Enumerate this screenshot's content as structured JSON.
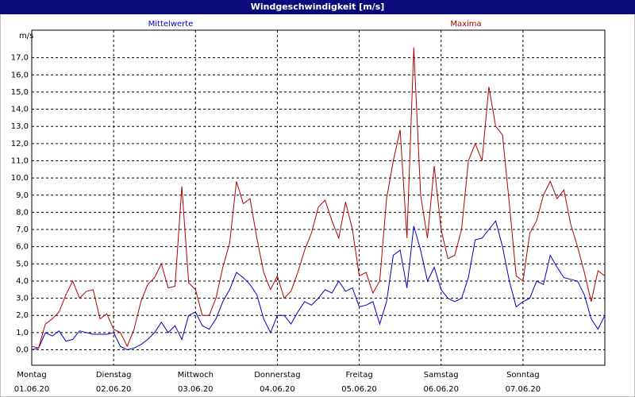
{
  "chart_data": {
    "type": "line",
    "title": "Windgeschwindigkeit [m/s]",
    "y_label": "m/s",
    "x": [
      0,
      2,
      4,
      6,
      8,
      10,
      12,
      14,
      16,
      18,
      20,
      22,
      24,
      26,
      28,
      30,
      32,
      34,
      36,
      38,
      40,
      42,
      44,
      46,
      48,
      50,
      52,
      54,
      56,
      58,
      60,
      62,
      64,
      66,
      68,
      70,
      72,
      74,
      76,
      78,
      80,
      82,
      84,
      86,
      88,
      90,
      92,
      94,
      96,
      98,
      100,
      102,
      104,
      106,
      108,
      110,
      112,
      114,
      116,
      118,
      120,
      122,
      124,
      126,
      128,
      130,
      132,
      134,
      136,
      138,
      140,
      142,
      144,
      146,
      148,
      150,
      152,
      154,
      156,
      158,
      160,
      162,
      164,
      166,
      168
    ],
    "series": [
      {
        "name": "Mittelwerte",
        "color": "#0000c0",
        "values": [
          0.0,
          0.1,
          1.0,
          0.8,
          1.1,
          0.5,
          0.6,
          1.1,
          1.0,
          0.9,
          0.9,
          0.9,
          1.0,
          0.2,
          0.0,
          0.1,
          0.3,
          0.6,
          1.0,
          1.6,
          1.0,
          1.4,
          0.6,
          2.0,
          2.2,
          1.4,
          1.2,
          1.8,
          2.8,
          3.5,
          4.5,
          4.2,
          3.8,
          3.2,
          1.8,
          1.0,
          2.0,
          2.0,
          1.5,
          2.2,
          2.8,
          2.6,
          3.0,
          3.5,
          3.3,
          4.0,
          3.4,
          3.6,
          2.5,
          2.6,
          2.8,
          1.5,
          2.8,
          5.5,
          5.8,
          3.6,
          7.2,
          5.8,
          4.0,
          4.8,
          3.5,
          3.0,
          2.8,
          3.0,
          4.2,
          6.4,
          6.5,
          7.0,
          7.5,
          6.0,
          4.0,
          2.5,
          2.8,
          3.0,
          4.0,
          3.8,
          5.5,
          4.8,
          4.2,
          4.1,
          4.0,
          3.2,
          1.8,
          1.2,
          2.0
        ]
      },
      {
        "name": "Maxima",
        "color": "#b00000",
        "values": [
          0.2,
          0.1,
          1.5,
          1.8,
          2.2,
          3.2,
          4.0,
          3.0,
          3.4,
          3.5,
          1.8,
          2.1,
          1.2,
          1.0,
          0.2,
          1.2,
          2.8,
          3.8,
          4.2,
          5.0,
          3.6,
          3.7,
          9.5,
          3.9,
          3.5,
          2.0,
          2.0,
          3.0,
          4.8,
          6.2,
          9.8,
          8.5,
          8.8,
          6.5,
          4.5,
          3.5,
          4.3,
          3.0,
          3.4,
          4.5,
          5.8,
          6.8,
          8.3,
          8.7,
          7.5,
          6.5,
          8.6,
          7.0,
          4.3,
          4.5,
          3.3,
          4.0,
          8.8,
          11.0,
          12.8,
          6.5,
          17.6,
          9.0,
          6.5,
          10.7,
          7.0,
          5.3,
          5.5,
          7.0,
          11.0,
          12.0,
          11.0,
          15.3,
          13.0,
          12.5,
          8.5,
          4.3,
          4.0,
          6.8,
          7.5,
          9.0,
          9.8,
          8.8,
          9.3,
          7.3,
          6.0,
          4.5,
          2.8,
          4.6,
          4.3
        ]
      }
    ],
    "xlim": [
      0,
      168
    ],
    "xticks": [
      {
        "value": 0,
        "label": "Montag",
        "date": "01.06.20"
      },
      {
        "value": 24,
        "label": "Dienstag",
        "date": "02.06.20"
      },
      {
        "value": 48,
        "label": "Mittwoch",
        "date": "03.06.20"
      },
      {
        "value": 72,
        "label": "Donnerstag",
        "date": "04.06.20"
      },
      {
        "value": 96,
        "label": "Freitag",
        "date": "05.06.20"
      },
      {
        "value": 120,
        "label": "Samstag",
        "date": "06.06.20"
      },
      {
        "value": 144,
        "label": "Sonntag",
        "date": "07.06.20"
      }
    ],
    "ylim": [
      -0.9,
      18.6
    ],
    "yticks": [
      {
        "value": 0,
        "label": "0,0"
      },
      {
        "value": 1,
        "label": "1,0"
      },
      {
        "value": 2,
        "label": "2,0"
      },
      {
        "value": 3,
        "label": "3,0"
      },
      {
        "value": 4,
        "label": "4,0"
      },
      {
        "value": 5,
        "label": "5,0"
      },
      {
        "value": 6,
        "label": "6,0"
      },
      {
        "value": 7,
        "label": "7,0"
      },
      {
        "value": 8,
        "label": "8,0"
      },
      {
        "value": 9,
        "label": "9,0"
      },
      {
        "value": 10,
        "label": "10,0"
      },
      {
        "value": 11,
        "label": "11,0"
      },
      {
        "value": 12,
        "label": "12,0"
      },
      {
        "value": 13,
        "label": "13,0"
      },
      {
        "value": 14,
        "label": "14,0"
      },
      {
        "value": 15,
        "label": "15,0"
      },
      {
        "value": 16,
        "label": "16,0"
      },
      {
        "value": 17,
        "label": "17,0"
      }
    ],
    "grid": true
  }
}
